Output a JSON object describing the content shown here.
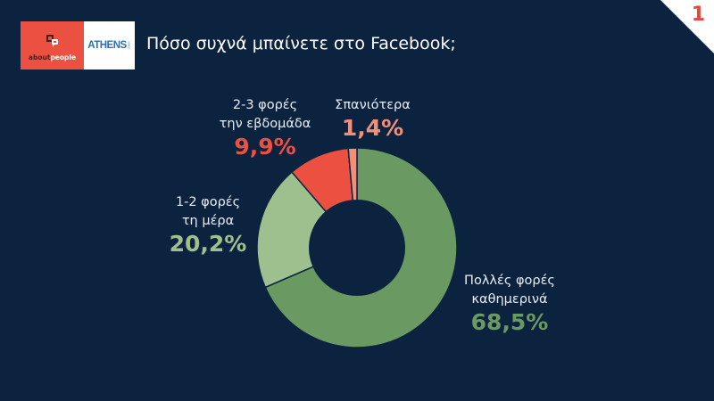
{
  "header": {
    "logo_left_text_part1": "about",
    "logo_left_text_part2": "people",
    "logo_right_text": "ATHENS",
    "logo_right_subtext": "VOICE",
    "title": "Πόσο συχνά μπαίνετε στο Facebook;",
    "page_number": "1"
  },
  "colors": {
    "background": "#0c2340",
    "many_times_daily": "#6a9a62",
    "one_two_daily": "#9ec08f",
    "two_three_weekly": "#ec5040",
    "rarely": "#f0907a",
    "accent_red": "#e8473a"
  },
  "labels": {
    "many_daily_line1": "Πολλές φορές",
    "many_daily_line2": "καθημερινά",
    "many_daily_pct": "68,5%",
    "one_two_line1": "1-2 φορές",
    "one_two_line2": "τη μέρα",
    "one_two_pct": "20,2%",
    "two_three_line1": "2-3 φορές",
    "two_three_line2": "την εβδομάδα",
    "two_three_pct": "9,9%",
    "rarely_line1": "Σπανιότερα",
    "rarely_pct": "1,4%"
  },
  "chart_data": {
    "type": "pie",
    "subtype": "donut",
    "title": "Πόσο συχνά μπαίνετε στο Facebook;",
    "categories": [
      "Πολλές φορές καθημερινά",
      "1-2 φορές τη μέρα",
      "2-3 φορές την εβδομάδα",
      "Σπανιότερα"
    ],
    "values": [
      68.5,
      20.2,
      9.9,
      1.4
    ],
    "unit": "%",
    "colors": [
      "#6a9a62",
      "#9ec08f",
      "#ec5040",
      "#f0907a"
    ],
    "start_angle": "12 o'clock, clockwise",
    "legend": "none (direct labels)"
  }
}
